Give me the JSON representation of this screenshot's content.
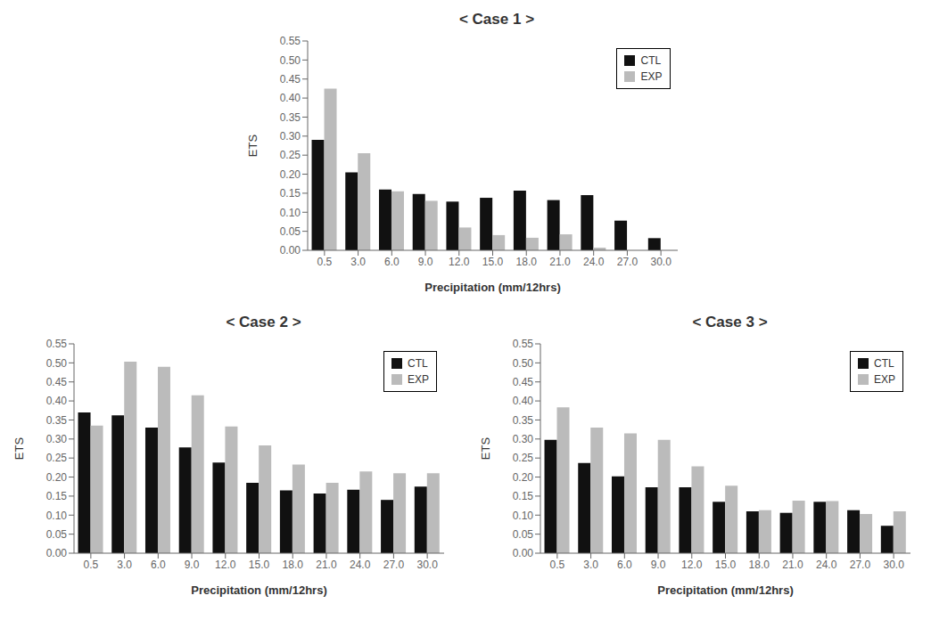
{
  "chart_data": [
    {
      "type": "bar",
      "title": "< Case 1 >",
      "categories": [
        "0.5",
        "3.0",
        "6.0",
        "9.0",
        "12.0",
        "15.0",
        "18.0",
        "21.0",
        "24.0",
        "27.0",
        "30.0"
      ],
      "series": [
        {
          "name": "CTL",
          "color": "#111111",
          "values": [
            0.29,
            0.205,
            0.16,
            0.148,
            0.128,
            0.138,
            0.157,
            0.132,
            0.145,
            0.078,
            0.032
          ]
        },
        {
          "name": "EXP",
          "color": "#bbbbbb",
          "values": [
            0.425,
            0.255,
            0.155,
            0.13,
            0.06,
            0.04,
            0.033,
            0.042,
            0.007,
            0.0,
            0.0
          ]
        }
      ],
      "xlabel": "Precipitation (mm/12hrs)",
      "ylabel": "ETS",
      "ylim": [
        0.0,
        0.55
      ],
      "yticks": [
        {
          "value": 0.0,
          "label": "0.00"
        },
        0.05,
        {
          "value": 0.1,
          "label": "0.10"
        },
        0.15,
        {
          "value": 0.2,
          "label": "0.20"
        },
        0.25,
        {
          "value": 0.3,
          "label": "0.30"
        },
        0.35,
        {
          "value": 0.4,
          "label": "0.40"
        },
        0.45,
        {
          "value": 0.5,
          "label": "0.50"
        },
        0.55
      ],
      "grid": false,
      "legend": "upper right"
    },
    {
      "type": "bar",
      "title": "< Case 2 >",
      "categories": [
        "0.5",
        "3.0",
        "6.0",
        "9.0",
        "12.0",
        "15.0",
        "18.0",
        "21.0",
        "24.0",
        "27.0",
        "30.0"
      ],
      "series": [
        {
          "name": "CTL",
          "color": "#111111",
          "values": [
            0.37,
            0.362,
            0.33,
            0.278,
            0.238,
            0.185,
            0.165,
            0.157,
            0.167,
            0.14,
            0.175
          ]
        },
        {
          "name": "EXP",
          "color": "#bbbbbb",
          "values": [
            0.335,
            0.503,
            0.49,
            0.415,
            0.333,
            0.283,
            0.233,
            0.185,
            0.215,
            0.21,
            0.21
          ]
        }
      ],
      "xlabel": "Precipitation (mm/12hrs)",
      "ylabel": "ETS",
      "ylim": [
        0.0,
        0.55
      ],
      "yticks": [
        {
          "value": 0.0,
          "label": "0.00"
        },
        0.05,
        {
          "value": 0.1,
          "label": "0.10"
        },
        0.15,
        {
          "value": 0.2,
          "label": "0.20"
        },
        0.25,
        {
          "value": 0.3,
          "label": "0.30"
        },
        0.35,
        {
          "value": 0.4,
          "label": "0.40"
        },
        0.45,
        {
          "value": 0.5,
          "label": "0.50"
        },
        0.55
      ],
      "grid": false,
      "legend": "upper right"
    },
    {
      "type": "bar",
      "title": "< Case 3 >",
      "categories": [
        "0.5",
        "3.0",
        "6.0",
        "9.0",
        "12.0",
        "15.0",
        "18.0",
        "21.0",
        "24.0",
        "27.0",
        "30.0"
      ],
      "series": [
        {
          "name": "CTL",
          "color": "#111111",
          "values": [
            0.298,
            0.237,
            0.202,
            0.173,
            0.173,
            0.135,
            0.11,
            0.106,
            0.135,
            0.113,
            0.072
          ]
        },
        {
          "name": "EXP",
          "color": "#bbbbbb",
          "values": [
            0.383,
            0.33,
            0.315,
            0.298,
            0.228,
            0.177,
            0.113,
            0.138,
            0.137,
            0.103,
            0.11
          ]
        }
      ],
      "xlabel": "Precipitation (mm/12hrs)",
      "ylabel": "ETS",
      "ylim": [
        0.0,
        0.55
      ],
      "yticks": [
        {
          "value": 0.0,
          "label": "0.00"
        },
        0.05,
        {
          "value": 0.1,
          "label": "0.10"
        },
        0.15,
        {
          "value": 0.2,
          "label": "0.20"
        },
        0.25,
        {
          "value": 0.3,
          "label": "0.30"
        },
        0.35,
        {
          "value": 0.4,
          "label": "0.40"
        },
        0.45,
        {
          "value": 0.5,
          "label": "0.50"
        },
        0.55
      ],
      "grid": false,
      "legend": "upper right"
    }
  ]
}
